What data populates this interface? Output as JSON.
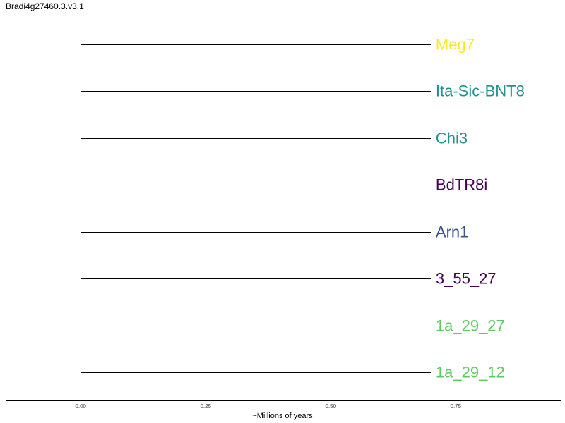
{
  "chart_data": {
    "type": "dendrogram",
    "title": "Bradi4g27460.3.v3.1",
    "xlabel": "~Millions of years",
    "xlim": [
      -0.15,
      0.96
    ],
    "x_ticks": [
      0.0,
      0.25,
      0.5,
      0.75
    ],
    "x_tick_labels": [
      "0.00",
      "0.25",
      "0.50",
      "0.75"
    ],
    "root_x": 0.0,
    "leaves": [
      {
        "label": "Meg7",
        "x": 0.7,
        "color": "#fde725"
      },
      {
        "label": "Ita-Sic-BNT8",
        "x": 0.7,
        "color": "#21918c"
      },
      {
        "label": "Chi3",
        "x": 0.7,
        "color": "#21918c"
      },
      {
        "label": "BdTR8i",
        "x": 0.7,
        "color": "#440154"
      },
      {
        "label": "Arn1",
        "x": 0.7,
        "color": "#3b528b"
      },
      {
        "label": "3_55_27",
        "x": 0.7,
        "color": "#440154"
      },
      {
        "label": "1a_29_27",
        "x": 0.7,
        "color": "#5ec962"
      },
      {
        "label": "1a_29_12",
        "x": 0.7,
        "color": "#5ec962"
      }
    ]
  }
}
